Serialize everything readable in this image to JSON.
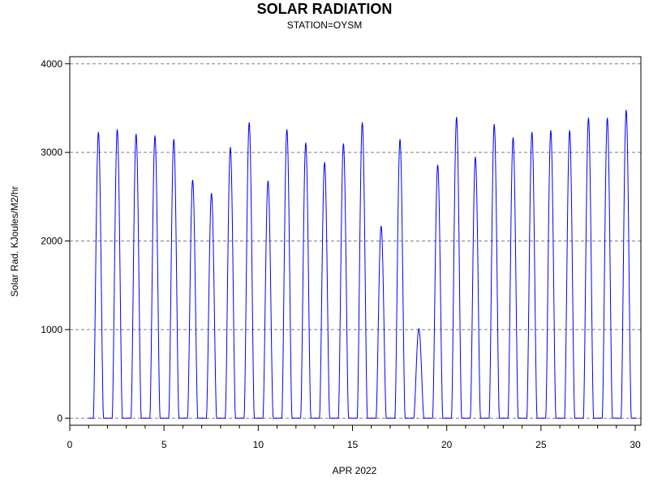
{
  "chart_data": {
    "type": "line",
    "title": "SOLAR RADIATION",
    "subtitle": "STATION=OYSM",
    "xlabel": "APR 2022",
    "ylabel": "Solar Rad. KJoules/M2/hr",
    "xlim": [
      0,
      30.3
    ],
    "ylim": [
      -80,
      4080
    ],
    "x_ticks": [
      0,
      5,
      10,
      15,
      20,
      25,
      30
    ],
    "x_minor_ticks": [
      1,
      2,
      3,
      4,
      6,
      7,
      8,
      9,
      11,
      12,
      13,
      14,
      16,
      17,
      18,
      19,
      21,
      22,
      23,
      24,
      26,
      27,
      28,
      29
    ],
    "y_ticks": [
      0,
      1000,
      2000,
      3000,
      4000
    ],
    "grid": "horizontal-dashed",
    "line_color": "#0000ff",
    "daily_peaks": [
      {
        "day": 1,
        "peak": 3230
      },
      {
        "day": 2,
        "peak": 3260
      },
      {
        "day": 3,
        "peak": 3210
      },
      {
        "day": 4,
        "peak": 3190
      },
      {
        "day": 5,
        "peak": 3150
      },
      {
        "day": 6,
        "peak": 2690
      },
      {
        "day": 7,
        "peak": 2540
      },
      {
        "day": 8,
        "peak": 3060
      },
      {
        "day": 9,
        "peak": 3340
      },
      {
        "day": 10,
        "peak": 2680
      },
      {
        "day": 11,
        "peak": 3260
      },
      {
        "day": 12,
        "peak": 3110
      },
      {
        "day": 13,
        "peak": 2890
      },
      {
        "day": 14,
        "peak": 3100
      },
      {
        "day": 15,
        "peak": 3340
      },
      {
        "day": 16,
        "peak": 2170
      },
      {
        "day": 17,
        "peak": 3150
      },
      {
        "day": 18,
        "peak": 1010
      },
      {
        "day": 19,
        "peak": 2860
      },
      {
        "day": 20,
        "peak": 3400
      },
      {
        "day": 21,
        "peak": 2950
      },
      {
        "day": 22,
        "peak": 3320
      },
      {
        "day": 23,
        "peak": 3170
      },
      {
        "day": 24,
        "peak": 3230
      },
      {
        "day": 25,
        "peak": 3250
      },
      {
        "day": 26,
        "peak": 3250
      },
      {
        "day": 27,
        "peak": 3390
      },
      {
        "day": 28,
        "peak": 3390
      },
      {
        "day": 29,
        "peak": 3480
      }
    ]
  }
}
